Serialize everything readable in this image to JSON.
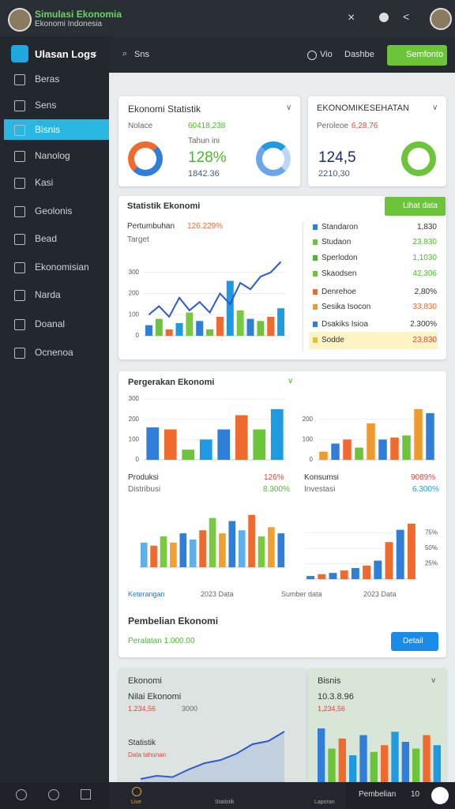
{
  "header": {
    "title": "Simulasi Ekonomia",
    "subtitle": "Ekonomi Indonesia"
  },
  "sidebar": {
    "brand": "Ulasan Logs",
    "items": [
      "Beras",
      "Sens",
      "Bisnis",
      "Nanolog",
      "Kasi",
      "Geolonis",
      "Bead",
      "Ekonomisian",
      "Narda",
      "Doanal",
      "Ocnenoa"
    ]
  },
  "toolbar": {
    "search": "Sns",
    "view": "Vio",
    "dashboard": "Dashbe",
    "button": "Semfonto"
  },
  "card1": {
    "title": "Ekonomi Statistik",
    "label": "Nolace",
    "value": "60418,238",
    "sub": "Tahun ini",
    "percent": "128%",
    "amount": "1842.36"
  },
  "card2": {
    "title": "EKONOMIKESEHATAN",
    "label": "Peroleoe",
    "value": "6,28,76",
    "big": "124,5",
    "amount": "2210,30"
  },
  "card3": {
    "title": "Statistik Ekonomi",
    "button": "Lihat data",
    "growth": "Pertumbuhan",
    "growth_value": "126.229%",
    "target": "Target",
    "list": [
      {
        "name": "Standaron",
        "value": "1,830"
      },
      {
        "name": "Studaon",
        "value": "23,830"
      },
      {
        "name": "Sperlodon",
        "value": "1,1030"
      },
      {
        "name": "Skaodsen",
        "value": "42,306"
      },
      {
        "name": "Denrehoe",
        "value": "2,80%"
      },
      {
        "name": "Sesika Isocon",
        "value": "33,830"
      },
      {
        "name": "Dsakiks Isioa",
        "value": "2.300%"
      },
      {
        "name": "Sodde",
        "value": "23,830"
      }
    ]
  },
  "card4": {
    "title": "Pergerakan Ekonomi",
    "produksi": "Produksi",
    "produksi_value": "126%",
    "distribusi": "Distribusi",
    "distribusi_value": "8.300%",
    "konsumsi": "Konsumsi",
    "konsumsi_value": "9089%",
    "investasi": "Investasi",
    "investasi_value": "6.300%",
    "legend_left": "Keterangan",
    "legend_left_year": "2023 Data",
    "legend_right": "Sumber data",
    "legend_right_year": "2023 Data",
    "subtitle": "Pembelian Ekonomi",
    "amount": "Peralatan 1.000.00",
    "button": "Detail"
  },
  "card5": {
    "title": "Ekonomi",
    "subtitle": "Nilai Ekonomi",
    "value": "1.234,56",
    "side": "3000",
    "label": "Statistik",
    "note": "Data tahunan"
  },
  "card6": {
    "title": "Bisnis",
    "subtitle": "10.3.8.96",
    "value": "1,234,56"
  },
  "bottom": {
    "tab1": "Live",
    "tab2": "Statistik",
    "tab3": "Laporan",
    "label": "Pembelian",
    "count": "10"
  },
  "charts": [
    {
      "type": "bar",
      "ylim": [
        0,
        400
      ],
      "yticks": [
        0,
        100,
        200,
        300
      ],
      "colors": [
        "#2f7fd8",
        "#6cc43a",
        "#ef6a2f",
        "#1f9ae0",
        "#7ac943"
      ],
      "values": [
        50,
        80,
        30,
        60,
        110,
        70,
        30,
        90,
        260,
        120,
        80,
        70,
        90,
        130
      ],
      "line": {
        "color": "#2a5ccf",
        "values": [
          100,
          140,
          90,
          180,
          120,
          160,
          110,
          200,
          150,
          250,
          220,
          280,
          300,
          350
        ]
      }
    },
    {
      "type": "bar",
      "ylim": [
        0,
        300
      ],
      "yticks": [
        0,
        100,
        200,
        300
      ],
      "colors": [
        "#2f7fd8",
        "#ef6a2f",
        "#6cc43a",
        "#1f9ae0"
      ],
      "values": [
        160,
        150,
        50,
        100,
        150,
        220,
        150,
        250
      ]
    },
    {
      "type": "bar",
      "ylim": [
        0,
        300
      ],
      "yticks": [
        0,
        100,
        200
      ],
      "colors": [
        "#ef9a2f",
        "#2f7fd8",
        "#ef6a2f",
        "#6cc43a"
      ],
      "values": [
        40,
        80,
        100,
        60,
        180,
        100,
        110,
        120,
        250,
        230
      ]
    },
    {
      "type": "bar",
      "ylim": [
        0,
        100
      ],
      "colors": [
        "#5fb0ea",
        "#ef6a2f",
        "#7ac943",
        "#f0a030",
        "#2f7fd8"
      ],
      "values": [
        40,
        35,
        50,
        40,
        55,
        45,
        60,
        80,
        55,
        75,
        60,
        85,
        50,
        65,
        55
      ]
    },
    {
      "type": "bar",
      "ylim": [
        0,
        100
      ],
      "yticks": [
        {
          "value": 25,
          "label": "25%"
        },
        {
          "value": 50,
          "label": "50%"
        },
        {
          "value": 75,
          "label": "75%"
        }
      ],
      "colors": [
        "#2f7fd8",
        "#ef6a2f"
      ],
      "values": [
        5,
        8,
        10,
        14,
        18,
        22,
        30,
        60,
        80,
        90
      ]
    },
    {
      "type": "line",
      "ylim": [
        0,
        100
      ],
      "color": "#2a5ccf",
      "values": [
        5,
        10,
        8,
        20,
        30,
        35,
        45,
        60,
        65,
        80
      ]
    },
    {
      "type": "bar",
      "ylim": [
        0,
        100
      ],
      "colors": [
        "#2f7fd8",
        "#6cc43a",
        "#ef6a2f",
        "#1f9ae0"
      ],
      "values": [
        80,
        50,
        65,
        40,
        70,
        45,
        55,
        75,
        60,
        50,
        70,
        55
      ]
    }
  ]
}
